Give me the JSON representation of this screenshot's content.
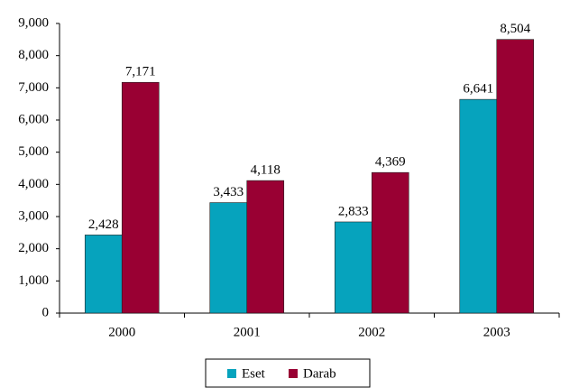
{
  "chart_data": {
    "type": "bar",
    "categories": [
      "2000",
      "2001",
      "2002",
      "2003"
    ],
    "series": [
      {
        "name": "Eset",
        "color": "#06a3bd",
        "values": [
          2428,
          3433,
          2833,
          6641
        ],
        "value_labels": [
          "2,428",
          "3,433",
          "2,833",
          "6,641"
        ]
      },
      {
        "name": "Darab",
        "color": "#990033",
        "values": [
          7171,
          4118,
          4369,
          8504
        ],
        "value_labels": [
          "7,171",
          "4,118",
          "4,369",
          "8,504"
        ]
      }
    ],
    "ylim": [
      0,
      9000
    ],
    "yticks": [
      0,
      {
        "value": 1000,
        "label": "1,000"
      },
      {
        "value": 2000,
        "label": "2,000"
      },
      {
        "value": 3000,
        "label": "3,000"
      },
      {
        "value": 4000,
        "label": "4,000"
      },
      {
        "value": 5000,
        "label": "5,000"
      },
      {
        "value": 6000,
        "label": "6,000"
      },
      {
        "value": 7000,
        "label": "7,000"
      },
      {
        "value": 8000,
        "label": "8,000"
      },
      {
        "value": 9000,
        "label": "9,000"
      }
    ],
    "grid": false,
    "legend": "bottom"
  }
}
